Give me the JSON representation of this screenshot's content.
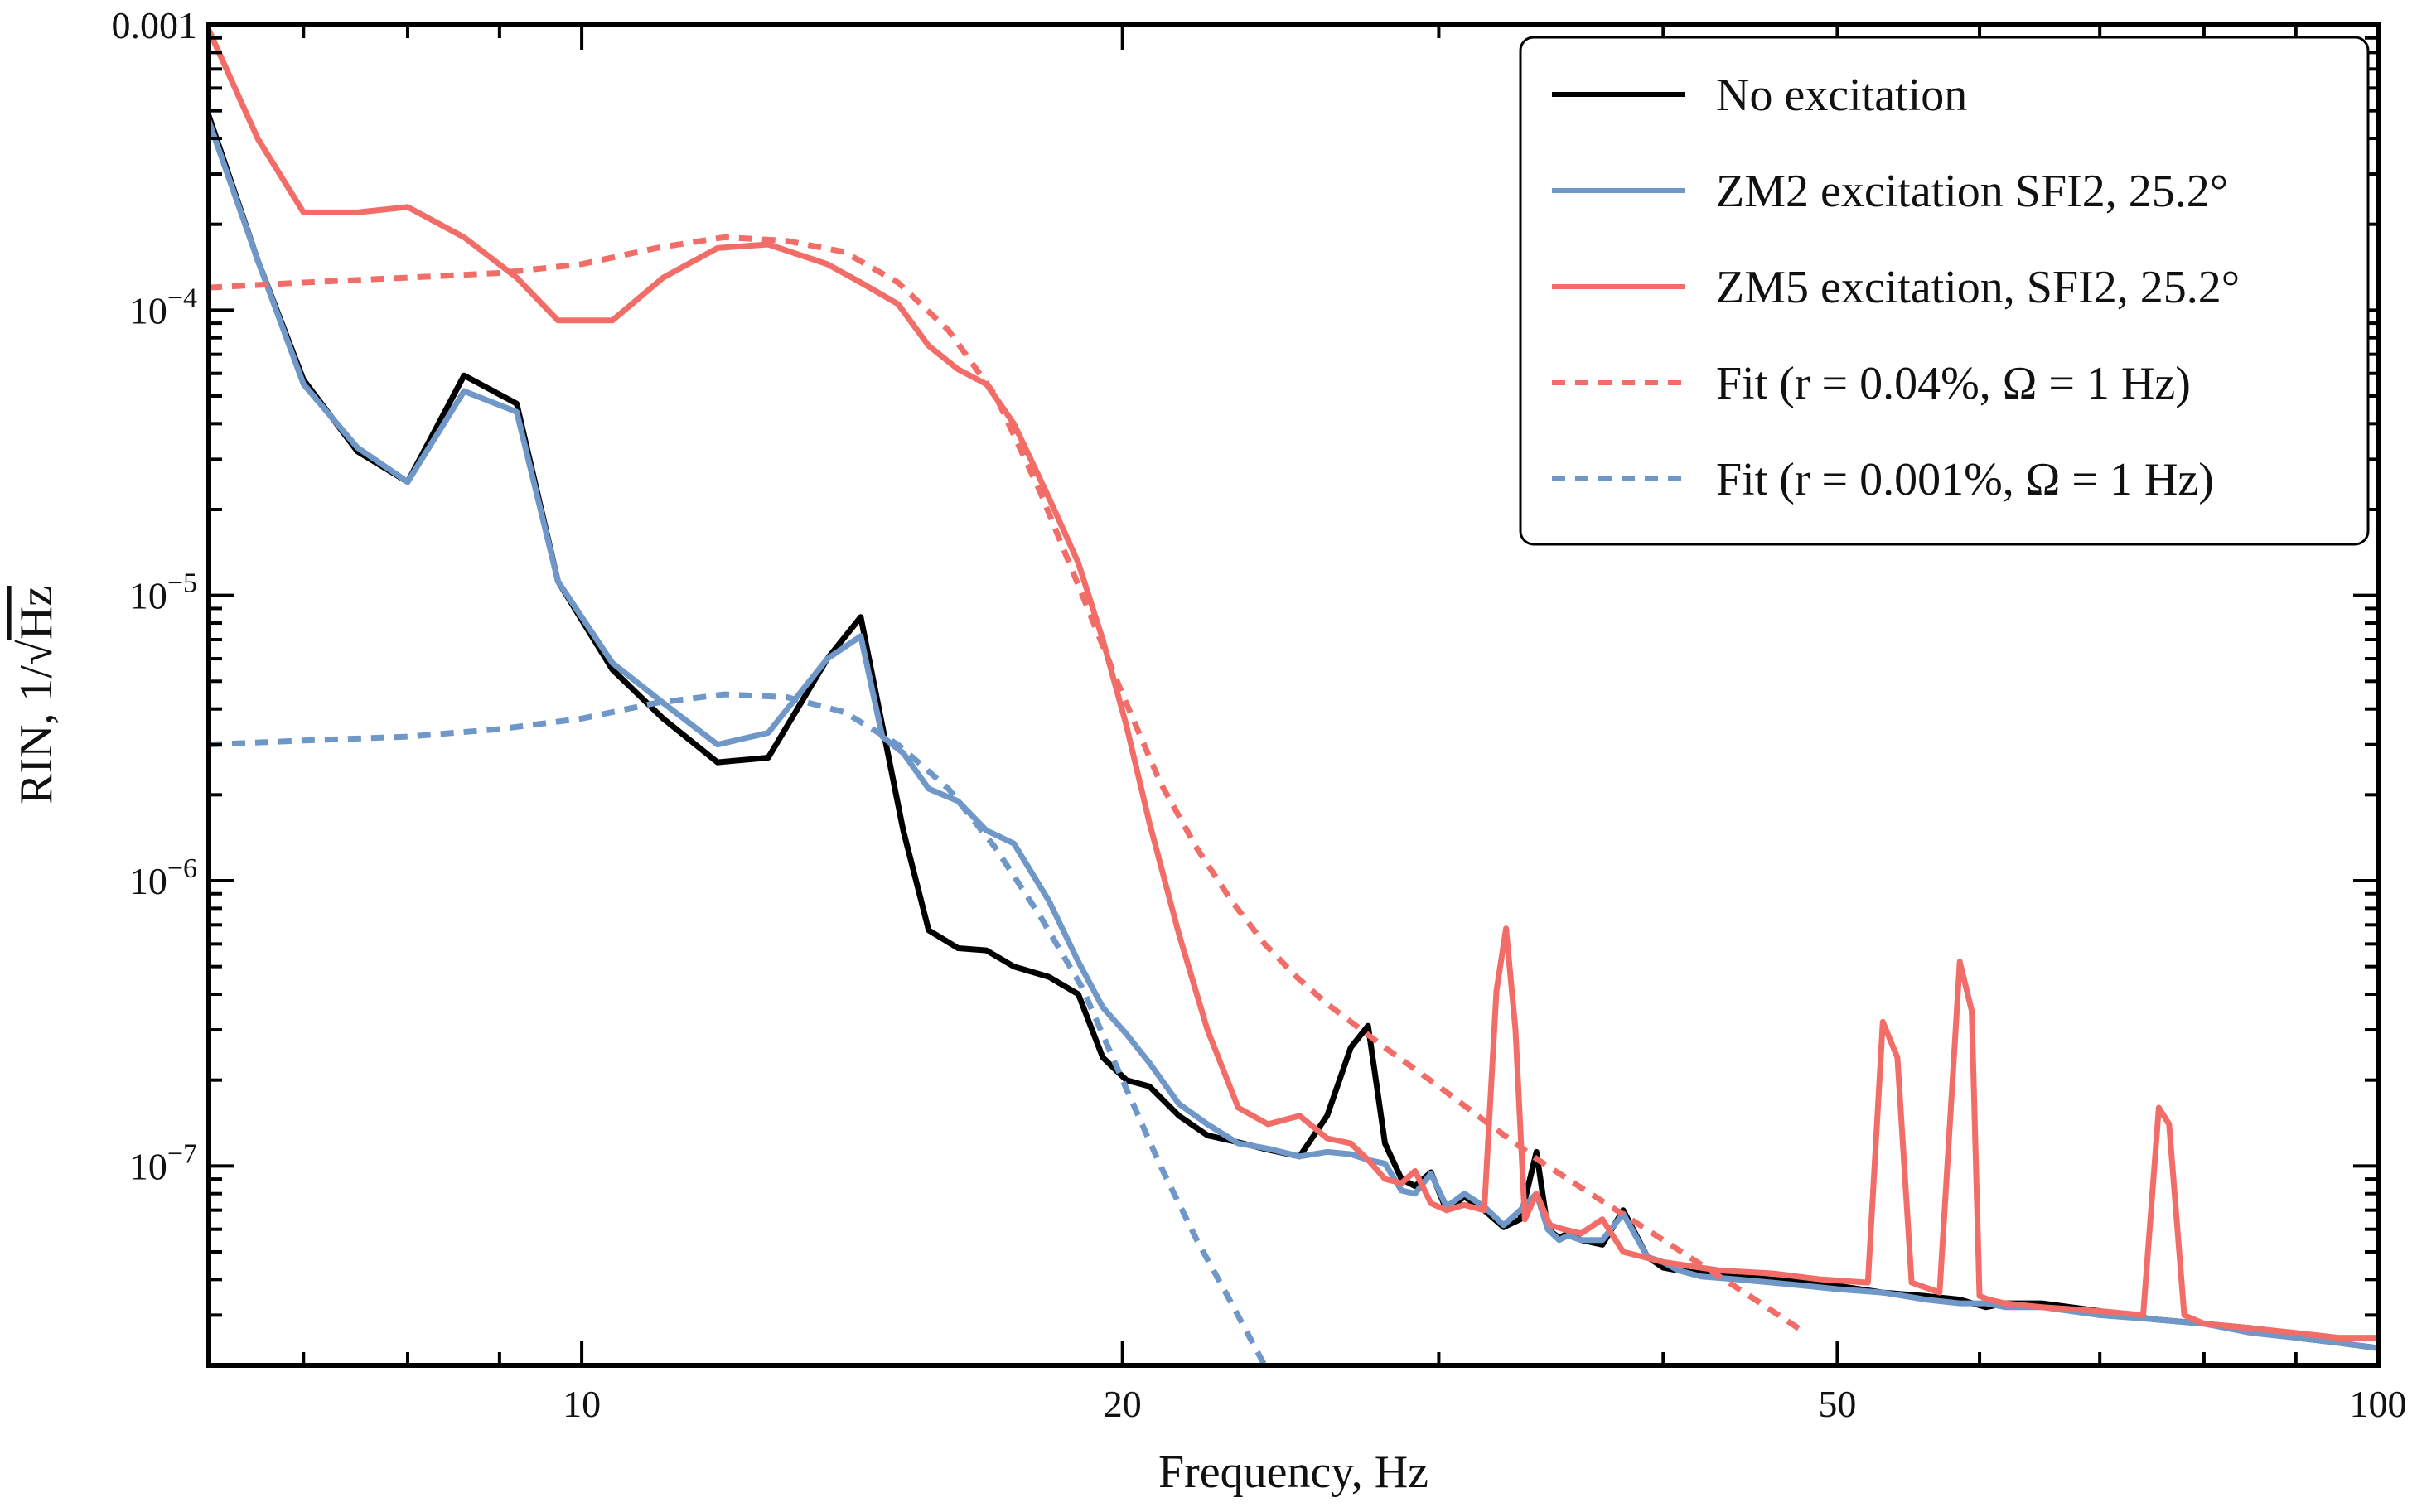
{
  "chart_data": {
    "type": "line",
    "title": "",
    "xlabel": "Frequency, Hz",
    "ylabel": "RIN, 1/√Hz",
    "ylabel_prefix": "RIN, 1/",
    "ylabel_radicand": "Hz",
    "xscale": "log",
    "yscale": "log",
    "xlim": [
      6.2,
      100
    ],
    "ylim": [
      2e-08,
      0.001
    ],
    "grid": false,
    "legend_position": "top-right",
    "x_ticks": [
      {
        "value": 10,
        "label": "10"
      },
      {
        "value": 20,
        "label": "20"
      },
      {
        "value": 50,
        "label": "50"
      },
      {
        "value": 100,
        "label": "100"
      }
    ],
    "y_ticks": [
      {
        "value": 0.001,
        "label": "0.001",
        "base": "",
        "exp": ""
      },
      {
        "value": 0.0001,
        "label": "",
        "base": "10",
        "exp": "−4"
      },
      {
        "value": 1e-05,
        "label": "",
        "base": "10",
        "exp": "−5"
      },
      {
        "value": 1e-06,
        "label": "",
        "base": "10",
        "exp": "−6"
      },
      {
        "value": 1e-07,
        "label": "",
        "base": "10",
        "exp": "−7"
      }
    ],
    "series": [
      {
        "name": "No excitation",
        "color": "#000000",
        "style": "solid",
        "x": [
          6.2,
          6.6,
          7.0,
          7.5,
          8.0,
          8.6,
          9.2,
          9.7,
          10.4,
          11.1,
          11.9,
          12.7,
          13.7,
          14.3,
          14.7,
          15.1,
          15.6,
          16.2,
          16.8,
          17.4,
          18.2,
          18.9,
          19.5,
          20.1,
          20.7,
          21.5,
          22.3,
          23.2,
          24.1,
          25.1,
          26.0,
          26.8,
          27.4,
          28.0,
          28.6,
          29.1,
          29.7,
          30.3,
          31.0,
          31.8,
          32.6,
          33.3,
          34.0,
          34.5,
          35.0,
          35.4,
          36.0,
          37.0,
          38.0,
          39.2,
          40.0,
          40.8,
          42.0,
          44.0,
          46.0,
          48.0,
          50.0,
          53.0,
          56.0,
          58.5,
          60.5,
          62.0,
          65.0,
          70.0,
          75.0,
          80.0,
          85.0,
          90.0,
          95.0,
          100.0
        ],
        "y": [
          0.00048,
          0.00015,
          5.7e-05,
          3.2e-05,
          2.5e-05,
          5.9e-05,
          4.7e-05,
          1.12e-05,
          5.5e-06,
          3.7e-06,
          2.6e-06,
          2.7e-06,
          6e-06,
          8.4e-06,
          3.5e-06,
          1.5e-06,
          6.7e-07,
          5.8e-07,
          5.7e-07,
          5e-07,
          4.6e-07,
          4e-07,
          2.4e-07,
          2e-07,
          1.9e-07,
          1.5e-07,
          1.28e-07,
          1.21e-07,
          1.14e-07,
          1.08e-07,
          1.5e-07,
          2.6e-07,
          3.1e-07,
          1.2e-07,
          9e-08,
          8.5e-08,
          9.5e-08,
          7e-08,
          7.8e-08,
          7e-08,
          6.1e-08,
          6.5e-08,
          1.12e-07,
          6e-08,
          5.6e-08,
          5.8e-08,
          5.5e-08,
          5.3e-08,
          7e-08,
          4.8e-08,
          4.4e-08,
          4.3e-08,
          4.2e-08,
          4.1e-08,
          4e-08,
          3.9e-08,
          3.8e-08,
          3.6e-08,
          3.5e-08,
          3.4e-08,
          3.2e-08,
          3.3e-08,
          3.3e-08,
          3.1e-08,
          2.9e-08,
          2.8e-08,
          2.7e-08,
          2.5e-08,
          2.4e-08,
          2.3e-08
        ]
      },
      {
        "name": "ZM2 excitation SFI2, 25.2°",
        "color": "#6f98c8",
        "style": "solid",
        "x": [
          6.2,
          6.6,
          7.0,
          7.5,
          8.0,
          8.6,
          9.2,
          9.7,
          10.4,
          11.1,
          11.9,
          12.7,
          13.7,
          14.3,
          14.7,
          15.1,
          15.6,
          16.2,
          16.8,
          17.4,
          18.2,
          18.9,
          19.5,
          20.1,
          20.7,
          21.5,
          22.3,
          23.2,
          24.1,
          25.1,
          26.0,
          26.8,
          27.4,
          28.0,
          28.6,
          29.1,
          29.7,
          30.3,
          31.0,
          31.8,
          32.6,
          33.3,
          34.0,
          34.5,
          35.0,
          35.4,
          36.0,
          37.0,
          38.0,
          39.2,
          40.0,
          40.8,
          42.0,
          44.0,
          46.0,
          48.0,
          50.0,
          53.0,
          56.0,
          58.5,
          60.5,
          62.0,
          65.0,
          70.0,
          75.0,
          80.0,
          85.0,
          90.0,
          95.0,
          100.0
        ],
        "y": [
          0.00046,
          0.00015,
          5.5e-05,
          3.3e-05,
          2.5e-05,
          5.2e-05,
          4.4e-05,
          1.12e-05,
          5.8e-06,
          4.2e-06,
          3e-06,
          3.3e-06,
          6e-06,
          7.2e-06,
          3.2e-06,
          2.8e-06,
          2.1e-06,
          1.9e-06,
          1.5e-06,
          1.35e-06,
          8.5e-07,
          5.2e-07,
          3.6e-07,
          2.9e-07,
          2.3e-07,
          1.65e-07,
          1.4e-07,
          1.2e-07,
          1.15e-07,
          1.08e-07,
          1.12e-07,
          1.1e-07,
          1.05e-07,
          1.02e-07,
          8.2e-08,
          8e-08,
          9.4e-08,
          7.2e-08,
          8e-08,
          7.2e-08,
          6.2e-08,
          7e-08,
          8e-08,
          6e-08,
          5.5e-08,
          5.7e-08,
          5.5e-08,
          5.5e-08,
          6.8e-08,
          4.8e-08,
          4.6e-08,
          4.3e-08,
          4.1e-08,
          4e-08,
          3.9e-08,
          3.8e-08,
          3.7e-08,
          3.6e-08,
          3.4e-08,
          3.3e-08,
          3.3e-08,
          3.2e-08,
          3.2e-08,
          3e-08,
          2.9e-08,
          2.8e-08,
          2.6e-08,
          2.5e-08,
          2.4e-08,
          2.3e-08
        ]
      },
      {
        "name": "ZM5 excitation, SFI2, 25.2°",
        "color": "#f26d68",
        "style": "solid",
        "x": [
          6.2,
          6.6,
          7.0,
          7.5,
          8.0,
          8.6,
          9.2,
          9.7,
          10.4,
          11.1,
          11.9,
          12.7,
          13.7,
          14.3,
          15.0,
          15.6,
          16.2,
          16.8,
          17.4,
          18.2,
          18.9,
          19.5,
          20.1,
          20.7,
          21.5,
          22.3,
          23.2,
          24.1,
          25.1,
          26.0,
          26.8,
          27.4,
          28.0,
          28.6,
          29.1,
          29.7,
          30.3,
          31.0,
          31.8,
          32.3,
          32.7,
          33.1,
          33.5,
          34.0,
          34.6,
          35.2,
          36.0,
          37.0,
          38.0,
          39.0,
          40.0,
          41.0,
          43.0,
          46.0,
          49.0,
          52.0,
          53.0,
          54.0,
          55.0,
          57.0,
          58.5,
          59.4,
          60.0,
          60.7,
          62.0,
          65.0,
          70.0,
          74.0,
          75.5,
          76.5,
          78.0,
          80.0,
          85.0,
          90.0,
          95.0,
          100.0
        ],
        "y": [
          0.00096,
          0.0004,
          0.00022,
          0.00022,
          0.00023,
          0.00018,
          0.00013,
          9.2e-05,
          9.2e-05,
          0.00013,
          0.000165,
          0.00017,
          0.000145,
          0.000125,
          0.000105,
          7.5e-05,
          6.2e-05,
          5.5e-05,
          4e-05,
          2.2e-05,
          1.3e-05,
          7e-06,
          3.5e-06,
          1.6e-06,
          6.5e-07,
          3e-07,
          1.6e-07,
          1.4e-07,
          1.5e-07,
          1.25e-07,
          1.2e-07,
          1.05e-07,
          9e-08,
          8.7e-08,
          9.6e-08,
          7.4e-08,
          7e-08,
          7.3e-08,
          7e-08,
          4.1e-07,
          6.8e-07,
          3e-07,
          6.5e-08,
          8e-08,
          6.2e-08,
          6e-08,
          5.8e-08,
          6.5e-08,
          5e-08,
          4.8e-08,
          4.6e-08,
          4.5e-08,
          4.3e-08,
          4.2e-08,
          4e-08,
          3.9e-08,
          3.2e-07,
          2.4e-07,
          3.9e-08,
          3.6e-08,
          5.2e-07,
          3.5e-07,
          3.5e-08,
          3.4e-08,
          3.3e-08,
          3.2e-08,
          3.1e-08,
          3e-08,
          1.6e-07,
          1.4e-07,
          3e-08,
          2.8e-08,
          2.7e-08,
          2.6e-08,
          2.5e-08,
          2.5e-08
        ]
      },
      {
        "name": "Fit (r = 0.04%, Ω = 1 Hz)",
        "color": "#f26d68",
        "style": "dashed",
        "x": [
          6.2,
          7.0,
          8.0,
          9.0,
          10.0,
          11.0,
          12.0,
          13.0,
          14.0,
          15.0,
          16.0,
          17.0,
          18.0,
          19.0,
          20.0,
          21.0,
          22.0,
          23.0,
          24.0,
          25.0,
          26.0,
          28.0,
          30.0,
          32.0,
          34.0,
          36.0,
          40.0,
          45.0,
          48.0
        ],
        "y": [
          0.00012,
          0.000125,
          0.00013,
          0.000135,
          0.000145,
          0.000165,
          0.00018,
          0.000175,
          0.00016,
          0.000125,
          8.5e-05,
          5e-05,
          2.3e-05,
          1e-05,
          4.5e-06,
          2.2e-06,
          1.3e-06,
          8.5e-07,
          6e-07,
          4.6e-07,
          3.7e-07,
          2.6e-07,
          1.9e-07,
          1.4e-07,
          1.06e-07,
          8.4e-08,
          5.5e-08,
          3.4e-08,
          2.6e-08
        ]
      },
      {
        "name": "Fit (r = 0.001%, Ω = 1 Hz)",
        "color": "#6f98c8",
        "style": "dashed",
        "x": [
          6.2,
          7.0,
          8.0,
          9.0,
          10.0,
          11.0,
          12.0,
          13.0,
          14.0,
          15.0,
          16.0,
          17.0,
          18.0,
          19.0,
          20.0,
          21.0,
          22.0,
          23.0,
          24.0
        ],
        "y": [
          3e-06,
          3.1e-06,
          3.2e-06,
          3.4e-06,
          3.7e-06,
          4.2e-06,
          4.5e-06,
          4.4e-06,
          3.9e-06,
          3e-06,
          2.1e-06,
          1.3e-06,
          7.5e-07,
          4.2e-07,
          2e-07,
          1e-07,
          5.5e-08,
          3.3e-08,
          2e-08
        ]
      }
    ]
  }
}
